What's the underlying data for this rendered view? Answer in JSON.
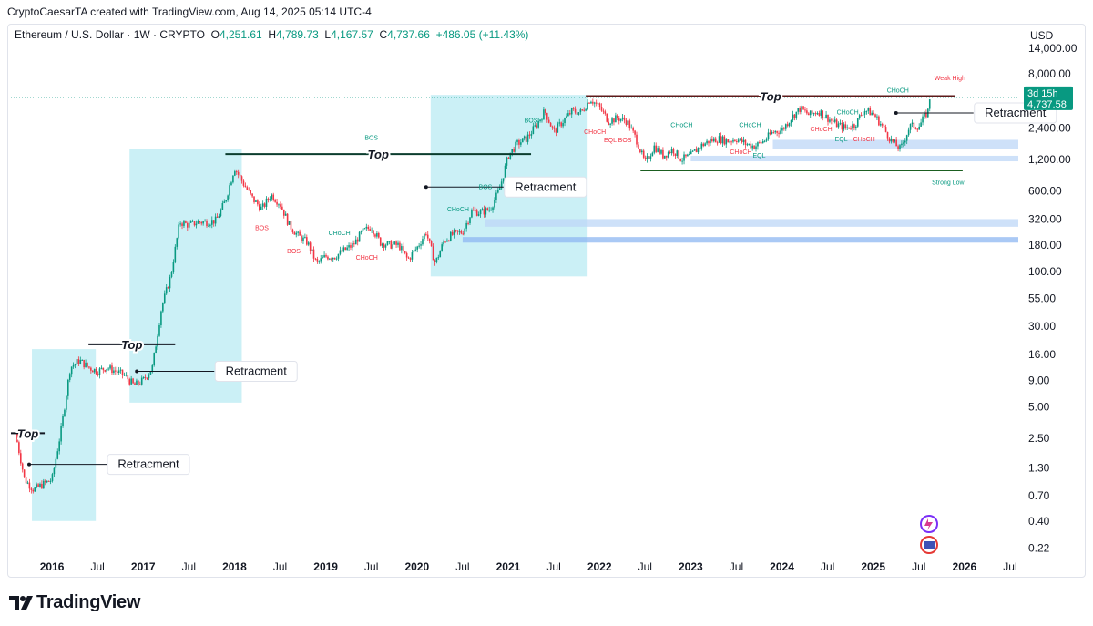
{
  "header": {
    "caption": "CryptoCaesarTA created with TradingView.com, Aug 14, 2025 05:14 UTC-4"
  },
  "symbol": {
    "name": "Ethereum / U.S. Dollar · 1W · CRYPTO",
    "open_label": "O",
    "open": "4,251.61",
    "high_label": "H",
    "high": "4,789.73",
    "low_label": "L",
    "low": "4,167.57",
    "close_label": "C",
    "close": "4,737.66",
    "change": "+486.05 (+11.43%)"
  },
  "price_axis": {
    "currency": "USD"
  },
  "footer": {
    "brand": "TradingView"
  },
  "colors": {
    "up": "#089981",
    "down": "#f23645",
    "highlight": "#c5eef5",
    "zone": "#bdd7f7",
    "zone_strong": "#8db7f2",
    "price_tag": "#089981"
  },
  "chart_data": {
    "type": "candlestick",
    "scale": "log",
    "y_ticks": [
      "14,000.00",
      "8,000.00",
      "2,400.00",
      "1,200.00",
      "600.00",
      "320.00",
      "180.00",
      "100.00",
      "55.00",
      "30.00",
      "16.00",
      "9.00",
      "5.00",
      "2.50",
      "1.30",
      "0.70",
      "0.40",
      "0.22"
    ],
    "y_tick_values": [
      14000,
      8000,
      2400,
      1200,
      600,
      320,
      180,
      100,
      55,
      30,
      16,
      9,
      5,
      2.5,
      1.3,
      0.7,
      0.4,
      0.22
    ],
    "x_ticks": [
      "2016",
      "Jul",
      "2017",
      "Jul",
      "2018",
      "Jul",
      "2019",
      "Jul",
      "2020",
      "Jul",
      "2021",
      "Jul",
      "2022",
      "Jul",
      "2023",
      "Jul",
      "2024",
      "Jul",
      "2025",
      "Jul",
      "2026",
      "Jul"
    ],
    "x_tick_values": [
      2016.0,
      2016.5,
      2017.0,
      2017.5,
      2018.0,
      2018.5,
      2019.0,
      2019.5,
      2020.0,
      2020.5,
      2021.0,
      2021.5,
      2022.0,
      2022.5,
      2023.0,
      2023.5,
      2024.0,
      2024.5,
      2025.0,
      2025.5,
      2026.0,
      2026.5
    ],
    "price_path": [
      [
        2015.6,
        2.8
      ],
      [
        2015.7,
        1.0
      ],
      [
        2015.8,
        0.8
      ],
      [
        2015.9,
        0.9
      ],
      [
        2016.0,
        1.0
      ],
      [
        2016.1,
        3.0
      ],
      [
        2016.2,
        12
      ],
      [
        2016.3,
        14
      ],
      [
        2016.4,
        12
      ],
      [
        2016.5,
        11
      ],
      [
        2016.6,
        12
      ],
      [
        2016.7,
        11
      ],
      [
        2016.8,
        10
      ],
      [
        2016.9,
        8
      ],
      [
        2017.0,
        9
      ],
      [
        2017.1,
        12
      ],
      [
        2017.2,
        45
      ],
      [
        2017.3,
        90
      ],
      [
        2017.4,
        300
      ],
      [
        2017.5,
        280
      ],
      [
        2017.6,
        300
      ],
      [
        2017.7,
        300
      ],
      [
        2017.8,
        310
      ],
      [
        2017.9,
        480
      ],
      [
        2018.0,
        1000
      ],
      [
        2018.1,
        700
      ],
      [
        2018.2,
        500
      ],
      [
        2018.3,
        400
      ],
      [
        2018.4,
        550
      ],
      [
        2018.5,
        450
      ],
      [
        2018.6,
        280
      ],
      [
        2018.7,
        220
      ],
      [
        2018.8,
        190
      ],
      [
        2018.9,
        120
      ],
      [
        2019.0,
        140
      ],
      [
        2019.1,
        140
      ],
      [
        2019.2,
        160
      ],
      [
        2019.3,
        180
      ],
      [
        2019.4,
        240
      ],
      [
        2019.5,
        270
      ],
      [
        2019.6,
        190
      ],
      [
        2019.7,
        180
      ],
      [
        2019.8,
        180
      ],
      [
        2019.9,
        130
      ],
      [
        2020.0,
        170
      ],
      [
        2020.1,
        240
      ],
      [
        2020.2,
        120
      ],
      [
        2020.3,
        200
      ],
      [
        2020.4,
        230
      ],
      [
        2020.5,
        240
      ],
      [
        2020.6,
        380
      ],
      [
        2020.7,
        370
      ],
      [
        2020.8,
        400
      ],
      [
        2020.9,
        600
      ],
      [
        2021.0,
        1300
      ],
      [
        2021.1,
        1700
      ],
      [
        2021.2,
        1900
      ],
      [
        2021.3,
        2500
      ],
      [
        2021.4,
        3500
      ],
      [
        2021.5,
        2200
      ],
      [
        2021.6,
        2800
      ],
      [
        2021.7,
        3500
      ],
      [
        2021.8,
        3400
      ],
      [
        2021.9,
        4600
      ],
      [
        2022.0,
        3800
      ],
      [
        2022.1,
        2800
      ],
      [
        2022.2,
        3000
      ],
      [
        2022.3,
        2800
      ],
      [
        2022.4,
        1900
      ],
      [
        2022.5,
        1100
      ],
      [
        2022.6,
        1600
      ],
      [
        2022.7,
        1300
      ],
      [
        2022.8,
        1500
      ],
      [
        2022.9,
        1200
      ],
      [
        2023.0,
        1300
      ],
      [
        2023.1,
        1600
      ],
      [
        2023.2,
        1800
      ],
      [
        2023.3,
        1900
      ],
      [
        2023.4,
        1800
      ],
      [
        2023.5,
        1900
      ],
      [
        2023.6,
        1700
      ],
      [
        2023.7,
        1600
      ],
      [
        2023.8,
        1800
      ],
      [
        2023.9,
        2200
      ],
      [
        2024.0,
        2300
      ],
      [
        2024.1,
        3000
      ],
      [
        2024.2,
        3700
      ],
      [
        2024.3,
        3200
      ],
      [
        2024.4,
        3500
      ],
      [
        2024.5,
        3000
      ],
      [
        2024.6,
        2600
      ],
      [
        2024.7,
        2400
      ],
      [
        2024.8,
        2600
      ],
      [
        2024.9,
        3600
      ],
      [
        2025.0,
        3300
      ],
      [
        2025.1,
        2500
      ],
      [
        2025.2,
        1800
      ],
      [
        2025.3,
        1500
      ],
      [
        2025.4,
        2500
      ],
      [
        2025.5,
        2500
      ],
      [
        2025.6,
        3500
      ],
      [
        2025.62,
        4737.66
      ]
    ],
    "highlight_boxes": [
      {
        "x0": 2015.78,
        "x1": 2016.48,
        "y0": 0.4,
        "y1": 18
      },
      {
        "x0": 2016.85,
        "x1": 2018.08,
        "y0": 5.5,
        "y1": 1500
      },
      {
        "x0": 2020.15,
        "x1": 2021.87,
        "y0": 90,
        "y1": 5000
      }
    ],
    "zones": [
      {
        "x0": 2020.75,
        "x1": 2026.59,
        "y0": 270,
        "y1": 320,
        "strength": "weak"
      },
      {
        "x0": 2020.5,
        "x1": 2026.59,
        "y0": 190,
        "y1": 215,
        "strength": "strong"
      },
      {
        "x0": 2023.9,
        "x1": 2026.59,
        "y0": 1500,
        "y1": 1850,
        "strength": "weak"
      },
      {
        "x0": 2023.0,
        "x1": 2026.59,
        "y0": 1150,
        "y1": 1300,
        "strength": "weak"
      }
    ],
    "top_lines": [
      {
        "label": "Top",
        "x0": 2015.55,
        "x1": 2015.92,
        "y": 2.8
      },
      {
        "label": "Top",
        "x0": 2016.4,
        "x1": 2017.35,
        "y": 20
      },
      {
        "label": "Top",
        "x0": 2017.9,
        "x1": 2021.25,
        "y": 1350
      },
      {
        "label": "Top",
        "x0": 2021.85,
        "x1": 2025.9,
        "y": 4870
      }
    ],
    "retracement_labels": [
      {
        "label": "Retracment",
        "x": 2015.65,
        "y": 1.4
      },
      {
        "label": "Retracment",
        "x": 2016.83,
        "y": 11
      },
      {
        "label": "Retracment",
        "x": 2020.0,
        "y": 650
      },
      {
        "label": "Retracment",
        "x": 2025.15,
        "y": 3350
      }
    ],
    "annotations": [
      {
        "text": "BOS",
        "x": 2019.5,
        "y": 1850,
        "color": "up"
      },
      {
        "text": "BOS",
        "x": 2021.25,
        "y": 2700,
        "color": "up"
      },
      {
        "text": "BOS",
        "x": 2020.75,
        "y": 620,
        "color": "up"
      },
      {
        "text": "CHoCH",
        "x": 2020.45,
        "y": 380,
        "color": "up"
      },
      {
        "text": "BOS",
        "x": 2018.3,
        "y": 250,
        "color": "down"
      },
      {
        "text": "BOS",
        "x": 2018.65,
        "y": 150,
        "color": "down"
      },
      {
        "text": "CHoCH",
        "x": 2019.15,
        "y": 225,
        "color": "up"
      },
      {
        "text": "CHoCH",
        "x": 2019.45,
        "y": 130,
        "color": "down"
      },
      {
        "text": "CHoCH",
        "x": 2021.95,
        "y": 2100,
        "color": "down"
      },
      {
        "text": "EQL BOS",
        "x": 2022.2,
        "y": 1750,
        "color": "down"
      },
      {
        "text": "CHoCH",
        "x": 2022.9,
        "y": 2450,
        "color": "up"
      },
      {
        "text": "CHoCH",
        "x": 2023.65,
        "y": 2450,
        "color": "up"
      },
      {
        "text": "CHoCH",
        "x": 2023.55,
        "y": 1350,
        "color": "down"
      },
      {
        "text": "EQL",
        "x": 2023.75,
        "y": 1250,
        "color": "up"
      },
      {
        "text": "CHoCH",
        "x": 2024.72,
        "y": 3250,
        "color": "up"
      },
      {
        "text": "CHoCH",
        "x": 2025.27,
        "y": 5300,
        "color": "up"
      },
      {
        "text": "EQL",
        "x": 2024.65,
        "y": 1800,
        "color": "up"
      },
      {
        "text": "CHoCH",
        "x": 2024.9,
        "y": 1800,
        "color": "down"
      },
      {
        "text": "CHoCH",
        "x": 2024.43,
        "y": 2250,
        "color": "down"
      },
      {
        "text": "Weak High",
        "x": 2025.84,
        "y": 6900,
        "color": "down"
      },
      {
        "text": "Strong Low",
        "x": 2025.82,
        "y": 690,
        "color": "up"
      }
    ],
    "strong_low": {
      "x0": 2022.45,
      "x1": 2025.98,
      "y": 930
    },
    "last_price": {
      "countdown": "3d 15h",
      "price": "4,737.58"
    }
  }
}
